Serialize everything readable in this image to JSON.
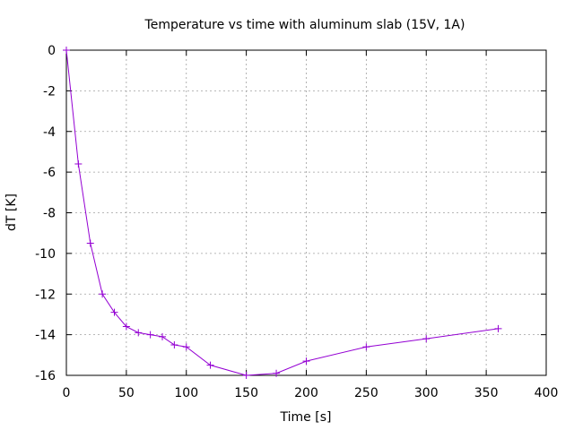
{
  "chart_data": {
    "type": "line",
    "title": "Temperature vs time with aluminum slab (15V, 1A)",
    "xlabel": "Time [s]",
    "ylabel": "dT [K]",
    "xlim": [
      0,
      400
    ],
    "ylim": [
      -16,
      0
    ],
    "xticks": [
      0,
      50,
      100,
      150,
      200,
      250,
      300,
      350,
      400
    ],
    "yticks": [
      0,
      -2,
      -4,
      -6,
      -8,
      -10,
      -12,
      -14,
      -16
    ],
    "grid": true,
    "series_color": "#9400d3",
    "marker": "plus",
    "series": [
      {
        "x": [
          0,
          10,
          20,
          30,
          40,
          50,
          60,
          70,
          80,
          90,
          100,
          120,
          150,
          175,
          200,
          250,
          300,
          360
        ],
        "y": [
          0,
          -5.6,
          -9.5,
          -12.0,
          -12.9,
          -13.6,
          -13.9,
          -14.0,
          -14.1,
          -14.5,
          -14.6,
          -15.5,
          -16.0,
          -15.9,
          -15.3,
          -14.6,
          -14.2,
          -13.7
        ]
      }
    ]
  }
}
